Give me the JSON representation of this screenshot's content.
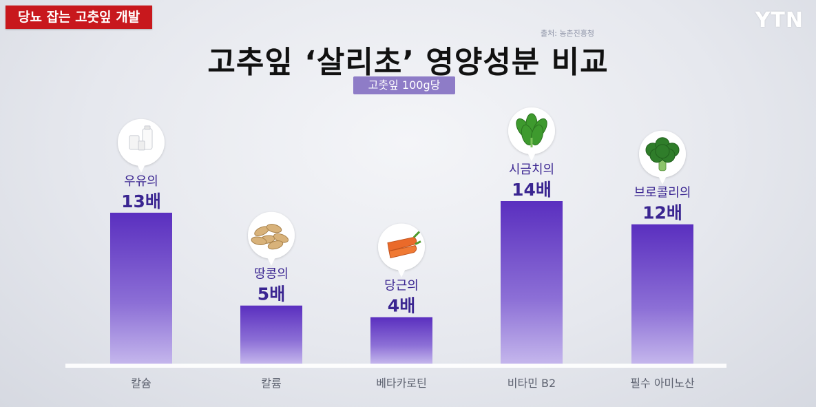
{
  "header": {
    "tag": "당뇨 잡는 고춧잎 개발",
    "logo": "YTN",
    "source": "출처: 농촌진흥청"
  },
  "colors": {
    "tag_bg": "#c8181d",
    "bar_top": "#5a2fbf",
    "bar_bottom": "#c4b6ec",
    "badge_bg": "#8e7cc7",
    "value_text": "#3a2591"
  },
  "chart_data": {
    "type": "bar",
    "title": "고추잎 ‘살리초’ 영양성분 비교",
    "subtitle": "고춧잎 100g당",
    "categories": [
      "칼슘",
      "칼륨",
      "베타카로틴",
      "비타민 B2",
      "필수 아미노산"
    ],
    "values": [
      13,
      5,
      4,
      14,
      12
    ],
    "comparison_labels": [
      "우유의",
      "땅콩의",
      "당근의",
      "시금치의",
      "브로콜리의"
    ],
    "value_labels": [
      "13배",
      "5배",
      "4배",
      "14배",
      "12배"
    ],
    "icons": [
      "milk-icon",
      "peanut-icon",
      "carrot-icon",
      "spinach-icon",
      "broccoli-icon"
    ],
    "ylim": [
      0,
      14
    ],
    "grid": false,
    "legend": "none"
  }
}
